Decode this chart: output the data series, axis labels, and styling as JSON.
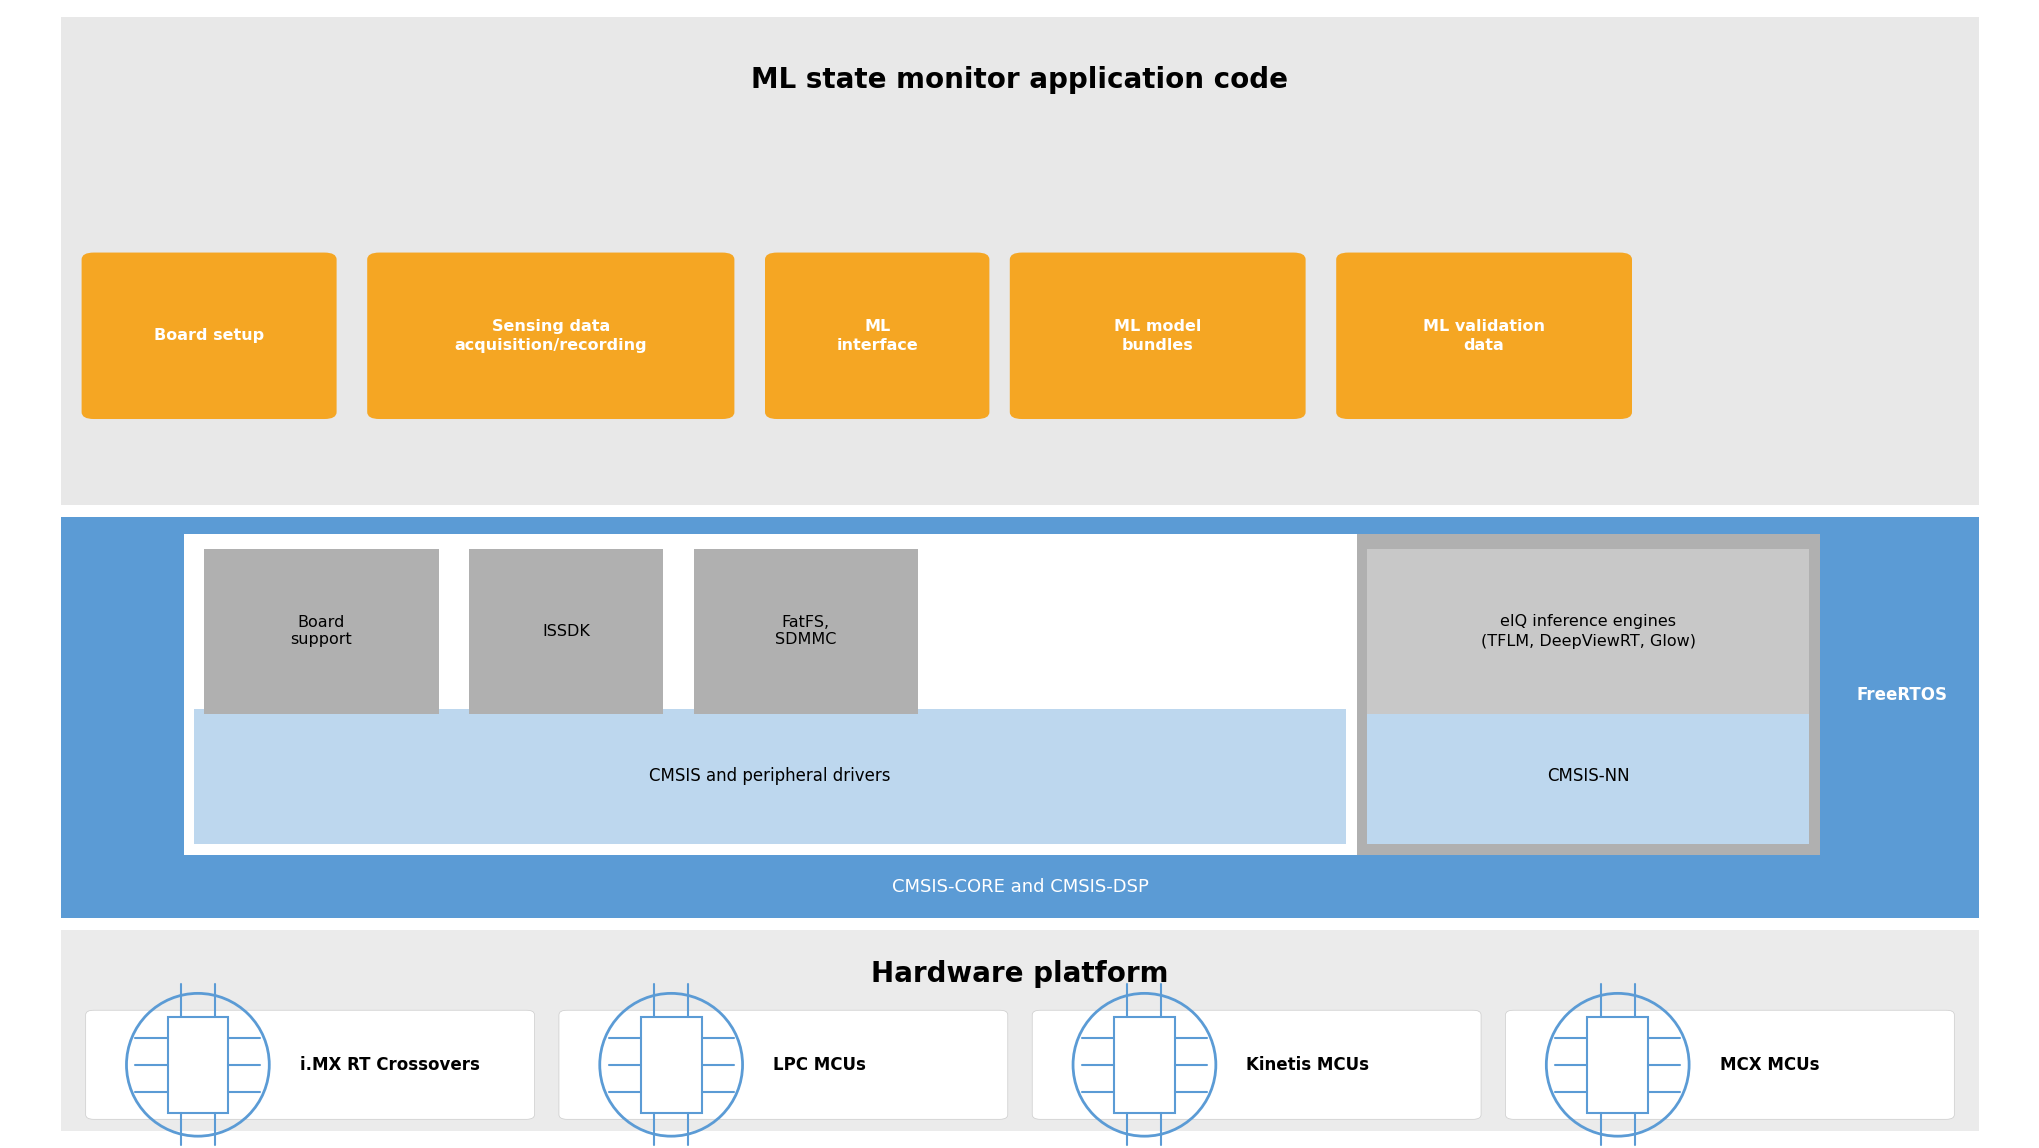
{
  "fig_width": 20.4,
  "fig_height": 11.48,
  "bg_color": "#ffffff",
  "outer_bg": "#e8e8e8",
  "blue_bg": "#5b9bd5",
  "light_blue": "#bdd7ee",
  "gray_box": "#b0b0b0",
  "orange_box": "#f5a623",
  "white_box": "#ffffff",
  "light_gray_bg": "#ebebeb",
  "title_ml": "ML state monitor application code",
  "title_hw": "Hardware platform",
  "orange_labels": [
    "Board setup",
    "Sensing data\nacquisition/recording",
    "ML\ninterface",
    "ML model\nbundles",
    "ML validation\ndata"
  ],
  "cmsis_periph": "CMSIS and peripheral drivers",
  "cmsis_nn": "CMSIS-NN",
  "cmsis_core": "CMSIS-CORE and CMSIS-DSP",
  "freertos": "FreeRTOS",
  "hw_items": [
    "i.MX RT Crossovers",
    "LPC MCUs",
    "Kinetis MCUs",
    "MCX MCUs"
  ],
  "icon_color": "#5b9bd5"
}
